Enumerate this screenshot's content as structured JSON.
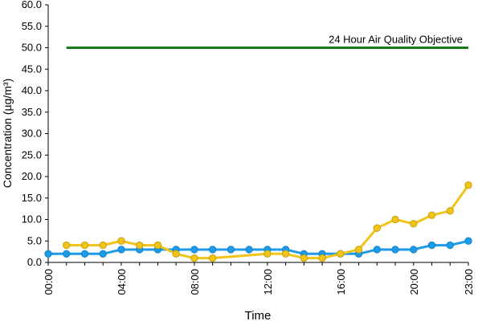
{
  "chart_data": {
    "type": "line",
    "xlabel": "Time",
    "ylabel": "Concentration (µg/m³)",
    "ylim": [
      0,
      60
    ],
    "yticks": [
      "0.0",
      "5.0",
      "10.0",
      "15.0",
      "20.0",
      "25.0",
      "30.0",
      "35.0",
      "40.0",
      "45.0",
      "50.0",
      "55.0",
      "60.0"
    ],
    "x": [
      0,
      1,
      2,
      3,
      4,
      5,
      6,
      7,
      8,
      9,
      10,
      11,
      12,
      13,
      14,
      15,
      16,
      17,
      18,
      19,
      20,
      21,
      22,
      23
    ],
    "xticks": [
      {
        "hour": 0,
        "label": "00:00"
      },
      {
        "hour": 4,
        "label": "04:00"
      },
      {
        "hour": 8,
        "label": "08:00"
      },
      {
        "hour": 12,
        "label": "12:00"
      },
      {
        "hour": 16,
        "label": "16:00"
      },
      {
        "hour": 20,
        "label": "20:00"
      },
      {
        "hour": 23,
        "label": "23:00"
      }
    ],
    "grid": false,
    "objective": {
      "label": "24 Hour Air Quality Objective",
      "value": 50,
      "x_start": 1,
      "x_end": 23,
      "color": "#1a7a1a"
    },
    "series": [
      {
        "color": "#1e9be8",
        "x": [
          0,
          1,
          2,
          3,
          4,
          5,
          6,
          7,
          8,
          9,
          10,
          11,
          12,
          13,
          14,
          15,
          16,
          17,
          18,
          19,
          20,
          21,
          22,
          23
        ],
        "values": [
          2,
          2,
          2,
          2,
          3,
          3,
          3,
          3,
          3,
          3,
          3,
          3,
          3,
          3,
          2,
          2,
          2,
          2,
          3,
          3,
          3,
          4,
          4,
          5
        ]
      },
      {
        "color": "#f0c419",
        "x": [
          1,
          2,
          3,
          4,
          5,
          6,
          7,
          8,
          9,
          12,
          13,
          14,
          15,
          16,
          17,
          18,
          19,
          20,
          21,
          22,
          23
        ],
        "values": [
          4,
          4,
          4,
          5,
          4,
          4,
          2,
          1,
          1,
          2,
          2,
          1,
          1,
          2,
          3,
          8,
          10,
          9,
          11,
          12,
          18
        ]
      }
    ]
  }
}
